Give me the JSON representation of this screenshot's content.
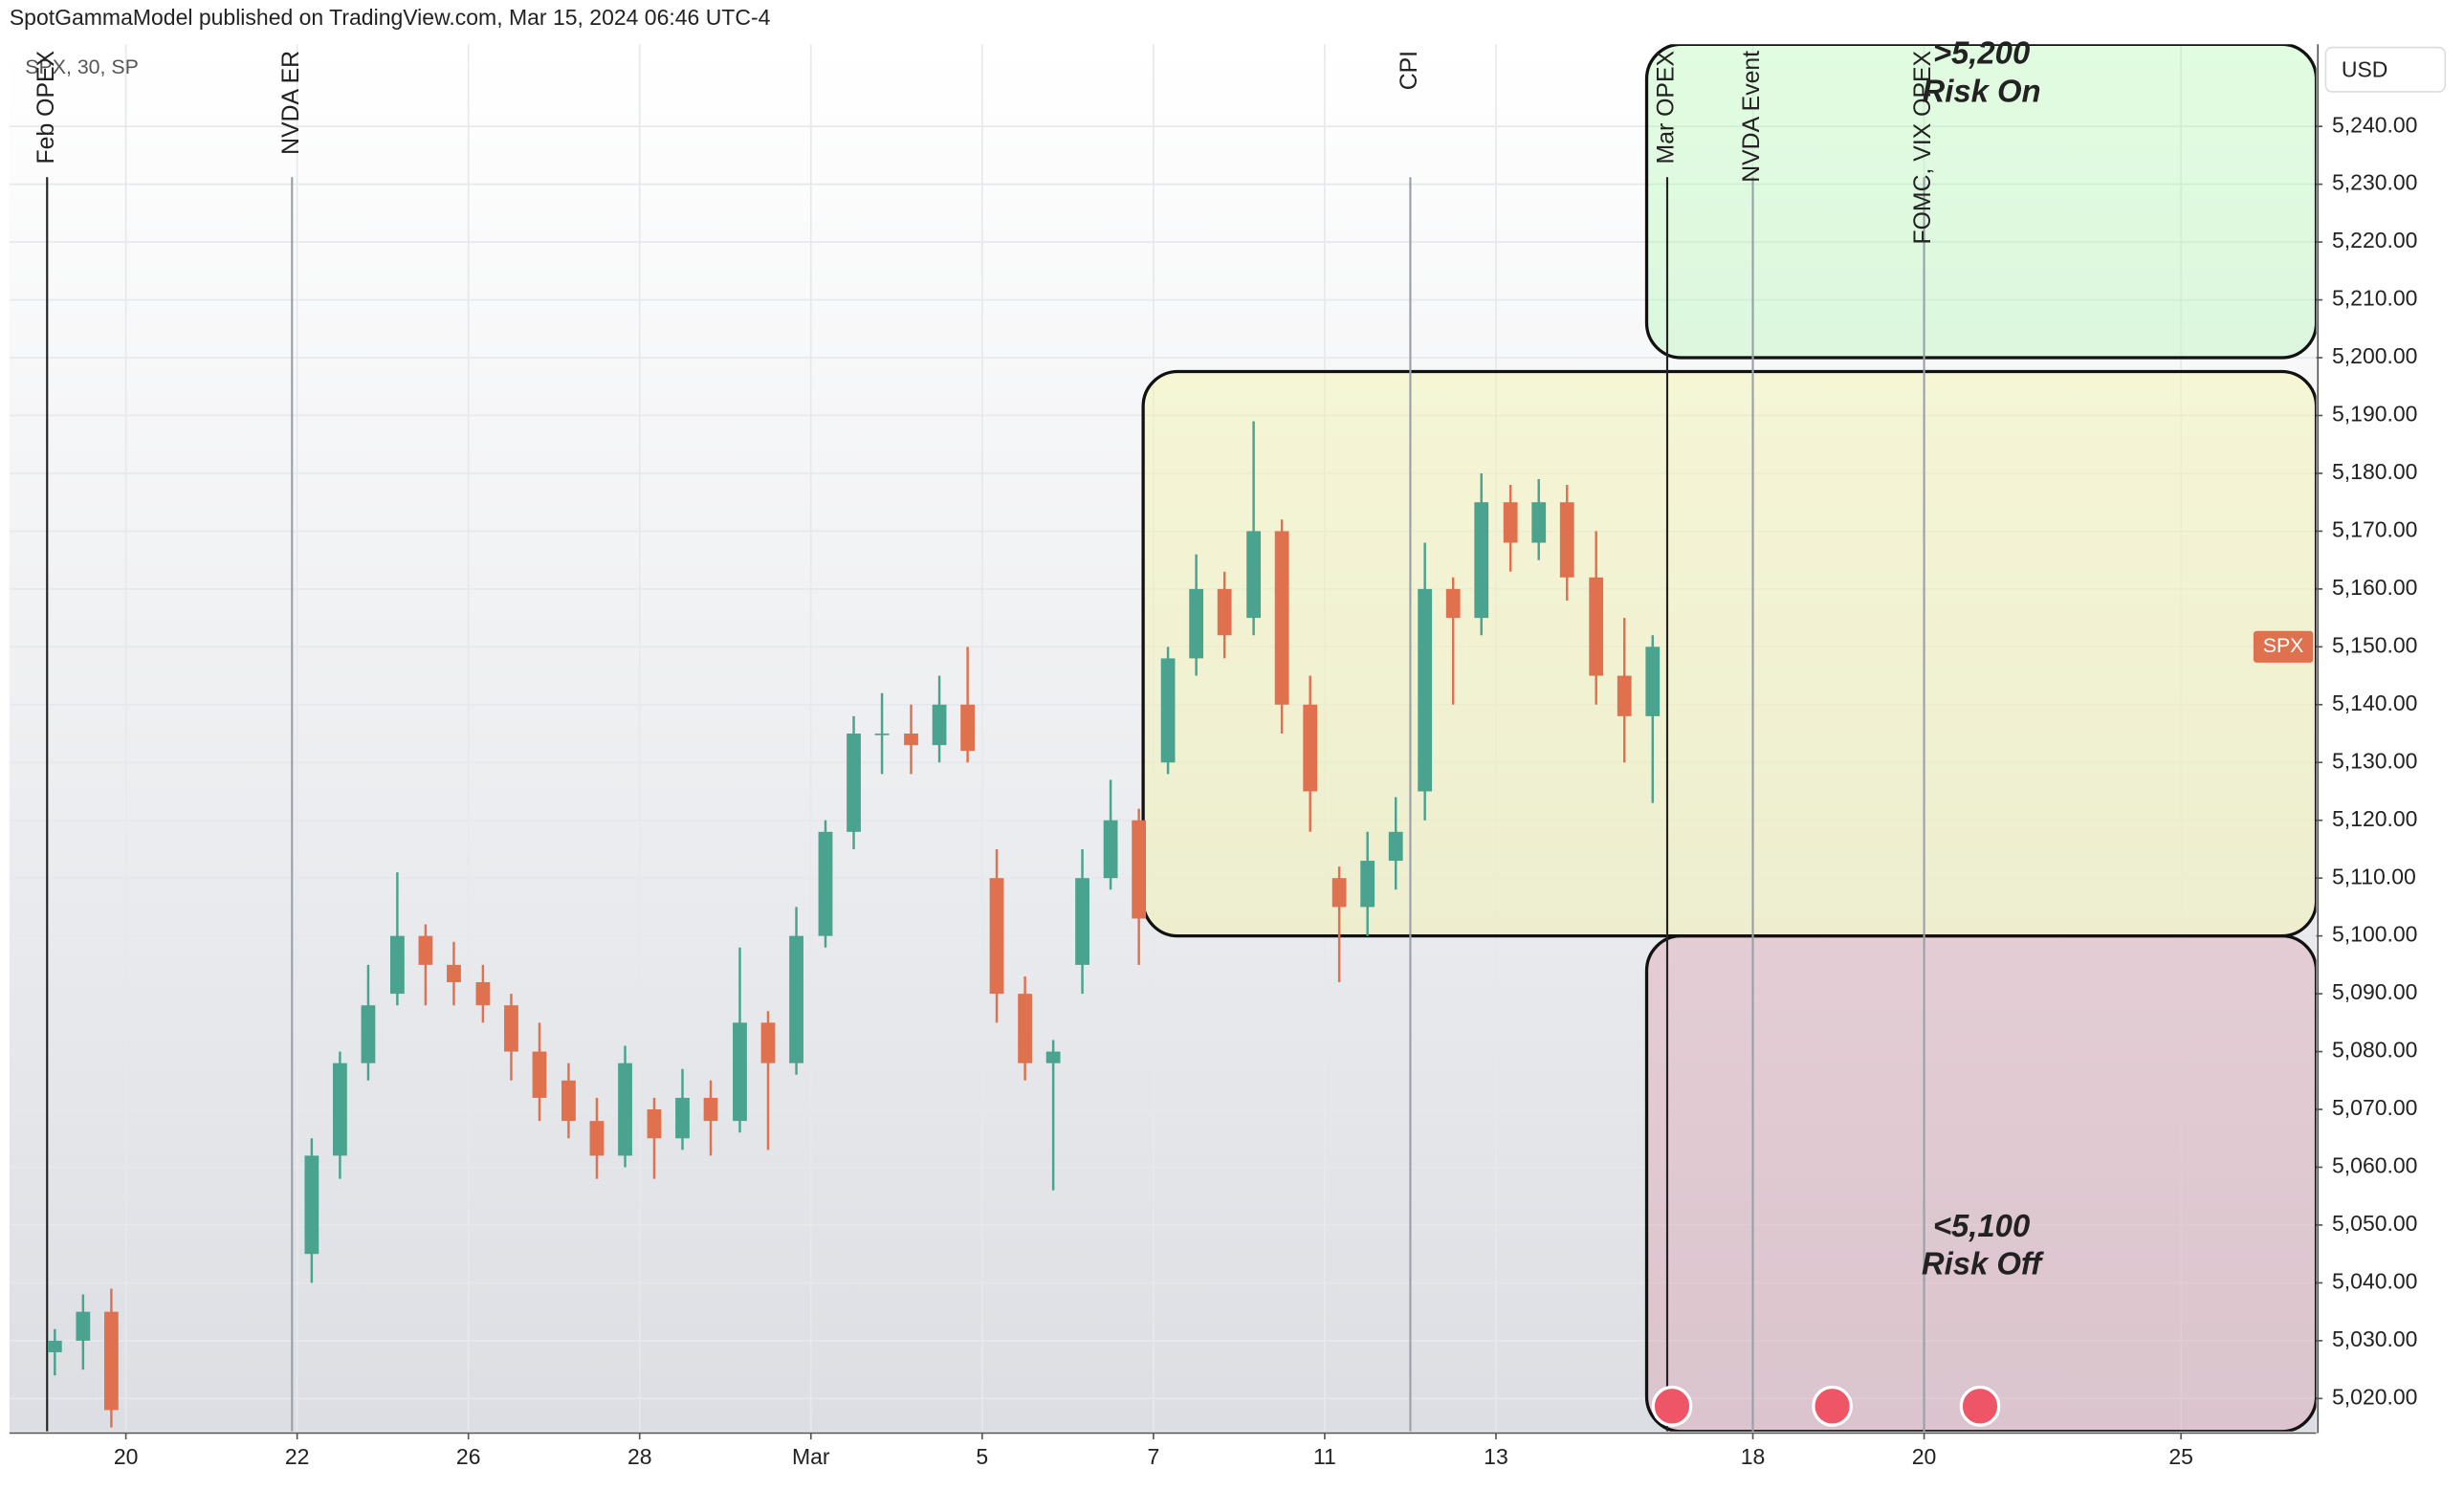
{
  "header": "SpotGammaModel published on TradingView.com, Mar 15, 2024 06:46 UTC-4",
  "chart_data": {
    "type": "candlestick",
    "legend": "SPX, 30, SP",
    "currency": "USD",
    "up_color": "#4aa38f",
    "down_color": "#e0714f",
    "x": [
      -0.83,
      -0.5,
      -0.17,
      2.17,
      2.5,
      2.83,
      3.17,
      3.5,
      3.83,
      4.17,
      4.5,
      4.83,
      5.17,
      5.5,
      5.83,
      6.17,
      6.5,
      6.83,
      7.17,
      7.5,
      7.83,
      8.17,
      8.5,
      8.83,
      9.17,
      9.5,
      9.83,
      10.17,
      10.5,
      10.83,
      11.17,
      11.5,
      11.83,
      12.17,
      12.5,
      12.83,
      13.17,
      13.5,
      13.83,
      14.17,
      14.5,
      14.83,
      15.17,
      15.5,
      15.83,
      16.17,
      16.5,
      16.83,
      17.17,
      17.5,
      17.83
    ],
    "open": [
      5028,
      5030,
      5035,
      5045,
      5062,
      5078,
      5090,
      5100,
      5095,
      5092,
      5088,
      5080,
      5075,
      5068,
      5062,
      5070,
      5065,
      5072,
      5068,
      5085,
      5078,
      5100,
      5118,
      5135,
      5135,
      5133,
      5140,
      5110,
      5090,
      5078,
      5095,
      5110,
      5120,
      5130,
      5148,
      5160,
      5155,
      5170,
      5140,
      5110,
      5105,
      5113,
      5125,
      5160,
      5155,
      5175,
      5168,
      5175,
      5162,
      5145,
      5138
    ],
    "high": [
      5032,
      5038,
      5039,
      5065,
      5080,
      5095,
      5111,
      5102,
      5099,
      5095,
      5090,
      5085,
      5078,
      5072,
      5081,
      5072,
      5077,
      5075,
      5098,
      5087,
      5105,
      5120,
      5138,
      5142,
      5140,
      5145,
      5150,
      5115,
      5093,
      5082,
      5115,
      5127,
      5122,
      5150,
      5166,
      5163,
      5189,
      5172,
      5145,
      5112,
      5118,
      5124,
      5168,
      5162,
      5180,
      5178,
      5179,
      5178,
      5170,
      5155,
      5152
    ],
    "low": [
      5024,
      5025,
      5015,
      5040,
      5058,
      5075,
      5088,
      5088,
      5088,
      5085,
      5075,
      5068,
      5065,
      5058,
      5060,
      5058,
      5063,
      5062,
      5066,
      5063,
      5076,
      5098,
      5115,
      5128,
      5128,
      5130,
      5130,
      5085,
      5075,
      5056,
      5090,
      5108,
      5095,
      5128,
      5145,
      5148,
      5152,
      5135,
      5118,
      5092,
      5100,
      5108,
      5120,
      5140,
      5152,
      5163,
      5165,
      5158,
      5140,
      5130,
      5123
    ],
    "close": [
      5030,
      5035,
      5018,
      5062,
      5078,
      5088,
      5100,
      5095,
      5092,
      5088,
      5080,
      5072,
      5068,
      5062,
      5078,
      5065,
      5072,
      5068,
      5085,
      5078,
      5100,
      5118,
      5135,
      5135,
      5133,
      5140,
      5132,
      5090,
      5078,
      5080,
      5110,
      5120,
      5103,
      5148,
      5160,
      5152,
      5170,
      5140,
      5125,
      5105,
      5113,
      5118,
      5160,
      5155,
      5175,
      5168,
      5175,
      5162,
      5145,
      5138,
      5150
    ],
    "xlim": [
      -1.36,
      25.58
    ],
    "ylim": [
      5014.3,
      5254.2
    ],
    "xticks": [
      {
        "value": 0,
        "label": "20"
      },
      {
        "value": 2,
        "label": "22"
      },
      {
        "value": 4,
        "label": "26"
      },
      {
        "value": 6,
        "label": "28"
      },
      {
        "value": 8,
        "label": "Mar"
      },
      {
        "value": 10,
        "label": "5"
      },
      {
        "value": 12,
        "label": "7"
      },
      {
        "value": 14,
        "label": "11"
      },
      {
        "value": 16,
        "label": "13"
      },
      {
        "value": 19,
        "label": "18"
      },
      {
        "value": 21,
        "label": "20"
      },
      {
        "value": 24,
        "label": "25"
      }
    ],
    "yticks": [
      {
        "value": 5020,
        "label": "5,020.00"
      },
      {
        "value": 5030,
        "label": "5,030.00"
      },
      {
        "value": 5040,
        "label": "5,040.00"
      },
      {
        "value": 5050,
        "label": "5,050.00"
      },
      {
        "value": 5060,
        "label": "5,060.00"
      },
      {
        "value": 5070,
        "label": "5,070.00"
      },
      {
        "value": 5080,
        "label": "5,080.00"
      },
      {
        "value": 5090,
        "label": "5,090.00"
      },
      {
        "value": 5100,
        "label": "5,100.00"
      },
      {
        "value": 5110,
        "label": "5,110.00"
      },
      {
        "value": 5120,
        "label": "5,120.00"
      },
      {
        "value": 5130,
        "label": "5,130.00"
      },
      {
        "value": 5140,
        "label": "5,140.00"
      },
      {
        "value": 5150,
        "label": "5,150.00"
      },
      {
        "value": 5160,
        "label": "5,160.00"
      },
      {
        "value": 5170,
        "label": "5,170.00"
      },
      {
        "value": 5180,
        "label": "5,180.00"
      },
      {
        "value": 5190,
        "label": "5,190.00"
      },
      {
        "value": 5200,
        "label": "5,200.00"
      },
      {
        "value": 5210,
        "label": "5,210.00"
      },
      {
        "value": 5220,
        "label": "5,220.00"
      },
      {
        "value": 5230,
        "label": "5,230.00"
      },
      {
        "value": 5240,
        "label": "5,240.00"
      }
    ],
    "grid": true,
    "events": [
      {
        "label": "Feb OPEX",
        "x": -0.92,
        "color": "#222"
      },
      {
        "label": "NVDA ER",
        "x": 1.94,
        "color": "#9aa0aa"
      },
      {
        "label": "CPI",
        "x": 15.0,
        "color": "#9aa0aa"
      },
      {
        "label": "Mar OPEX",
        "x": 18.0,
        "color": "#222"
      },
      {
        "label": "NVDA Event",
        "x": 19.0,
        "color": "#9aa0aa"
      },
      {
        "label": "FOMC, VIX OPEX",
        "x": 21.0,
        "color": "#9aa0aa"
      }
    ],
    "zones": [
      {
        "lines": [
          ">5,200",
          "Risk On"
        ],
        "low": 5200,
        "high": 5254.2,
        "x0": 17.76,
        "x1": 25.58,
        "color": "rgba(170,245,170,0.35)"
      },
      {
        "lines": [],
        "low": 5100,
        "high": 5197.6,
        "x0": 11.88,
        "x1": 25.58,
        "color": "rgba(245,245,170,0.45)"
      },
      {
        "lines": [
          "<5,100",
          "Risk Off"
        ],
        "low": 5014.3,
        "high": 5100,
        "x0": 17.76,
        "x1": 25.58,
        "color": "rgba(215,120,140,0.25)"
      }
    ],
    "price_tag": {
      "label": "SPX",
      "value": 5150,
      "color": "#e0714f"
    }
  }
}
